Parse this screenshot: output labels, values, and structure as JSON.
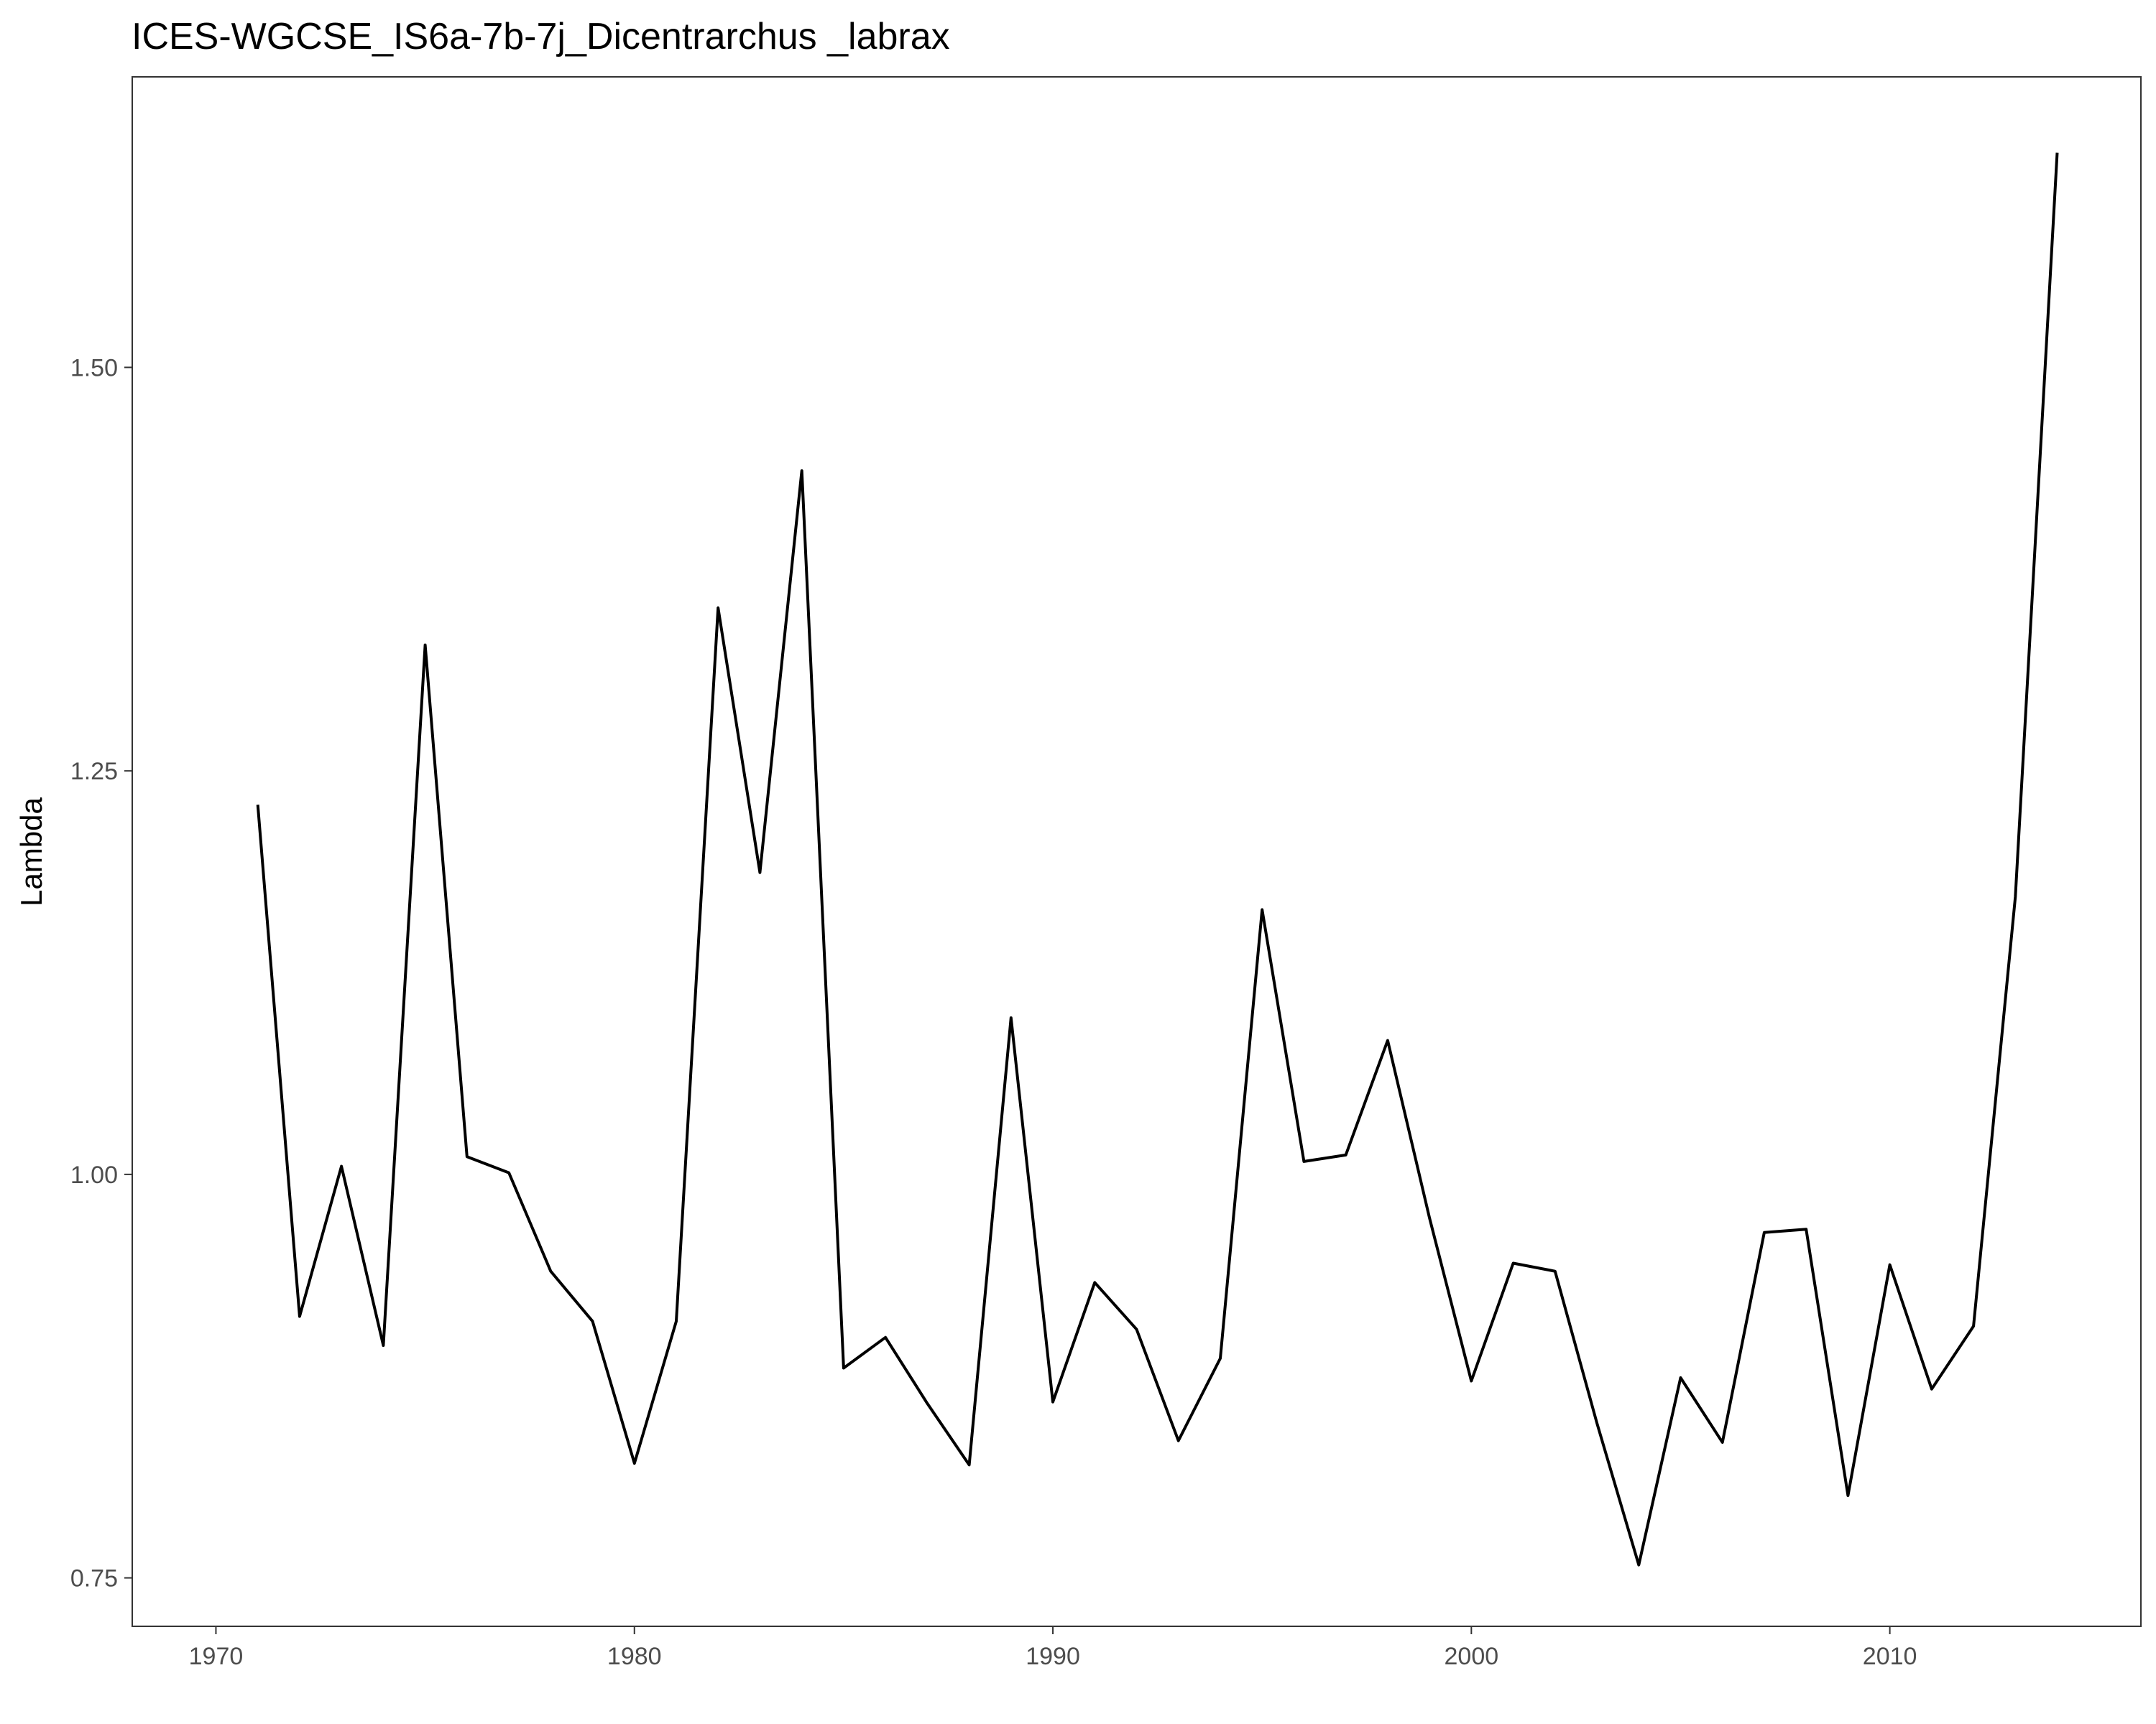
{
  "chart_data": {
    "type": "line",
    "title": "ICES-WGCSE_IS6a-7b-7j_Dicentrarchus _labrax",
    "xlabel": "",
    "ylabel": "Lambda",
    "xlim": [
      1968,
      2016
    ],
    "ylim": [
      0.72,
      1.68
    ],
    "x_ticks": [
      1970,
      1980,
      1990,
      2000,
      2010
    ],
    "x_tick_labels": [
      "1970",
      "1980",
      "1990",
      "2000",
      "2010"
    ],
    "y_ticks": [
      0.75,
      1.0,
      1.25,
      1.5
    ],
    "y_tick_labels": [
      "0.75",
      "1.00",
      "1.25",
      "1.50"
    ],
    "grid": false,
    "legend": "none",
    "line_color": "#000000",
    "series": [
      {
        "x": [
          1971,
          1972,
          1973,
          1974,
          1975,
          1976,
          1977,
          1978,
          1979,
          1980,
          1981,
          1982,
          1983,
          1984,
          1985,
          1986,
          1987,
          1988,
          1989,
          1990,
          1991,
          1992,
          1993,
          1994,
          1995,
          1996,
          1997,
          1998,
          1999,
          2000,
          2001,
          2002,
          2003,
          2004,
          2005,
          2006,
          2007,
          2008,
          2009,
          2010,
          2011,
          2012,
          2013,
          2014
        ],
        "values": [
          1.229,
          0.912,
          1.005,
          0.894,
          1.328,
          1.011,
          1.001,
          0.94,
          0.909,
          0.821,
          0.909,
          1.351,
          1.187,
          1.436,
          0.88,
          0.899,
          0.858,
          0.82,
          1.097,
          0.859,
          0.933,
          0.904,
          0.835,
          0.886,
          1.164,
          1.008,
          1.012,
          1.083,
          0.973,
          0.872,
          0.945,
          0.94,
          0.846,
          0.758,
          0.874,
          0.834,
          0.964,
          0.966,
          0.801,
          0.944,
          0.867,
          0.906,
          1.172,
          1.633
        ]
      }
    ]
  }
}
